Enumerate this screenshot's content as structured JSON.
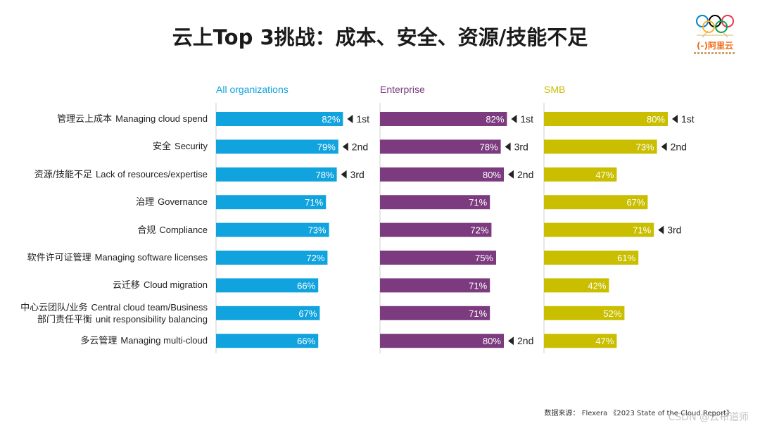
{
  "title": "云上Top 3挑战：成本、安全、资源/技能不足",
  "logo": {
    "text": "阿里云",
    "icon": "olympic-rings-icon"
  },
  "source": "数据来源： Flexera 《2023 State of the Cloud Report》",
  "watermark": "CSDN @云布道师",
  "colors": {
    "all": "#11a3de",
    "enterprise": "#7c3b7f",
    "smb": "#c9bf00",
    "axis": "#cfcfcf"
  },
  "chart_data": {
    "type": "bar",
    "orientation": "horizontal",
    "categories": [
      {
        "cn": "管理云上成本",
        "en": "Managing cloud spend"
      },
      {
        "cn": "安全",
        "en": "Security"
      },
      {
        "cn": "资源/技能不足",
        "en": "Lack of resources/expertise"
      },
      {
        "cn": "治理",
        "en": "Governance"
      },
      {
        "cn": "合规",
        "en": "Compliance"
      },
      {
        "cn": "软件许可证管理",
        "en": "Managing software licenses"
      },
      {
        "cn": "云迁移",
        "en": "Cloud migration"
      },
      {
        "cn": "中心云团队/业务 部门责任平衡",
        "en": "Central cloud team/Business unit responsibility balancing",
        "cn_lines": [
          "中心云团队/业务",
          "部门责任平衡"
        ],
        "en_lines": [
          "Central cloud team/Business",
          "unit responsibility balancing"
        ]
      },
      {
        "cn": "多云管理",
        "en": "Managing multi-cloud"
      }
    ],
    "series": [
      {
        "name": "All organizations",
        "color_key": "all",
        "values": [
          82,
          79,
          78,
          71,
          73,
          72,
          66,
          67,
          66
        ],
        "ranks": [
          "1st",
          "2nd",
          "3rd",
          "",
          "",
          "",
          "",
          "",
          ""
        ]
      },
      {
        "name": "Enterprise",
        "color_key": "enterprise",
        "values": [
          82,
          78,
          80,
          71,
          72,
          75,
          71,
          71,
          80
        ],
        "ranks": [
          "1st",
          "3rd",
          "2nd",
          "",
          "",
          "",
          "",
          "",
          "2nd"
        ]
      },
      {
        "name": "SMB",
        "color_key": "smb",
        "values": [
          80,
          73,
          47,
          67,
          71,
          61,
          42,
          52,
          47
        ],
        "ranks": [
          "1st",
          "2nd",
          "",
          "",
          "3rd",
          "",
          "",
          "",
          ""
        ]
      }
    ],
    "value_suffix": "%",
    "xlim": [
      0,
      100
    ]
  }
}
